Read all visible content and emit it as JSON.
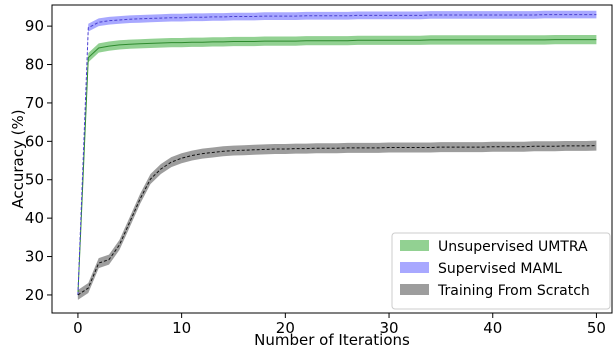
{
  "chart_data": {
    "type": "line",
    "title": "",
    "xlabel": "Number of Iterations",
    "ylabel": "Accuracy (%)",
    "xlim": [
      -2.5,
      51.5
    ],
    "ylim": [
      15.3,
      95.5
    ],
    "xticks": [
      0,
      10,
      20,
      30,
      40,
      50
    ],
    "yticks": [
      20,
      30,
      40,
      50,
      60,
      70,
      80,
      90
    ],
    "grid": false,
    "legend_position": "bottom-right",
    "x": [
      0,
      1,
      2,
      3,
      4,
      5,
      6,
      7,
      8,
      9,
      10,
      11,
      12,
      13,
      14,
      15,
      16,
      17,
      18,
      19,
      20,
      21,
      22,
      23,
      24,
      25,
      26,
      27,
      28,
      29,
      30,
      31,
      32,
      33,
      34,
      35,
      36,
      37,
      38,
      39,
      40,
      41,
      42,
      43,
      44,
      45,
      46,
      47,
      48,
      49,
      50
    ],
    "series": [
      {
        "name": "Unsupervised UMTRA",
        "line_color": "#2e8b2e",
        "band_color": "#7fc97f",
        "band_width": 1.2,
        "values": [
          20.0,
          81.8,
          84.3,
          84.8,
          85.1,
          85.3,
          85.4,
          85.5,
          85.6,
          85.7,
          85.7,
          85.8,
          85.8,
          85.9,
          85.9,
          86.0,
          86.0,
          86.0,
          86.1,
          86.1,
          86.1,
          86.1,
          86.2,
          86.2,
          86.2,
          86.2,
          86.2,
          86.3,
          86.3,
          86.3,
          86.3,
          86.3,
          86.3,
          86.3,
          86.4,
          86.4,
          86.4,
          86.4,
          86.4,
          86.4,
          86.4,
          86.4,
          86.4,
          86.4,
          86.4,
          86.4,
          86.5,
          86.5,
          86.5,
          86.5,
          86.5
        ]
      },
      {
        "name": "Supervised MAML",
        "line_color": "#4a3fd1",
        "band_color": "#9999ff",
        "band_width": 1.0,
        "values": [
          20.0,
          89.6,
          91.0,
          91.4,
          91.6,
          91.8,
          91.9,
          92.0,
          92.1,
          92.2,
          92.2,
          92.3,
          92.3,
          92.4,
          92.4,
          92.5,
          92.5,
          92.5,
          92.6,
          92.6,
          92.6,
          92.6,
          92.7,
          92.7,
          92.7,
          92.7,
          92.7,
          92.8,
          92.8,
          92.8,
          92.8,
          92.8,
          92.8,
          92.8,
          92.9,
          92.9,
          92.9,
          92.9,
          92.9,
          92.9,
          92.9,
          92.9,
          92.9,
          92.9,
          92.9,
          93.0,
          93.0,
          93.0,
          93.0,
          93.0,
          93.0
        ]
      },
      {
        "name": "Training From Scratch",
        "line_color": "#111111",
        "band_color": "#8c8c8c",
        "band_width": 1.3,
        "values": [
          20.0,
          21.8,
          28.3,
          29.2,
          33.0,
          39.0,
          45.0,
          50.2,
          52.8,
          54.6,
          55.6,
          56.3,
          56.8,
          57.1,
          57.4,
          57.6,
          57.7,
          57.8,
          57.9,
          58.0,
          58.0,
          58.1,
          58.1,
          58.2,
          58.2,
          58.2,
          58.3,
          58.3,
          58.3,
          58.3,
          58.4,
          58.4,
          58.4,
          58.4,
          58.4,
          58.5,
          58.5,
          58.5,
          58.5,
          58.5,
          58.6,
          58.6,
          58.6,
          58.6,
          58.7,
          58.7,
          58.7,
          58.8,
          58.8,
          58.8,
          58.9
        ]
      }
    ]
  }
}
